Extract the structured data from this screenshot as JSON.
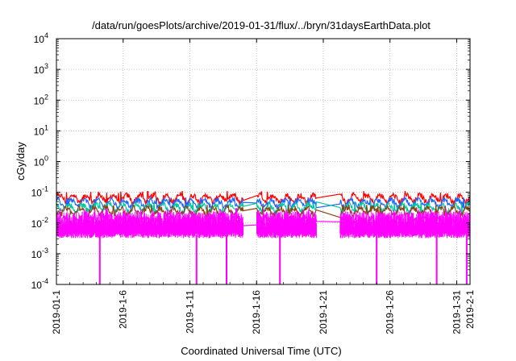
{
  "chart_data": {
    "type": "line",
    "title": "/data/run/goesPlots/archive/2019-01-31/flux/../bryn/31daysEarthData.plot",
    "xlabel": "Coordinated Universal Time (UTC)",
    "ylabel": "cGy/day",
    "y_scale": "log",
    "ylim": [
      0.0001,
      10000
    ],
    "y_ticks": [
      {
        "value": 0.0001,
        "base": "10",
        "exp": "-4"
      },
      {
        "value": 0.001,
        "base": "10",
        "exp": "-3"
      },
      {
        "value": 0.01,
        "base": "10",
        "exp": "-2"
      },
      {
        "value": 0.1,
        "base": "10",
        "exp": "-1"
      },
      {
        "value": 1,
        "base": "10",
        "exp": "0"
      },
      {
        "value": 10,
        "base": "10",
        "exp": "1"
      },
      {
        "value": 100,
        "base": "10",
        "exp": "2"
      },
      {
        "value": 1000,
        "base": "10",
        "exp": "3"
      },
      {
        "value": 10000,
        "base": "10",
        "exp": "4"
      }
    ],
    "xlim": [
      "2019-01-01",
      "2019-02-01"
    ],
    "x_ticks": [
      "2019-01-1",
      "2019-1-6",
      "2019-1-11",
      "2019-1-16",
      "2019-1-21",
      "2019-1-26",
      "2019-1-31",
      "2019-2-1"
    ],
    "x_tick_dates": [
      "2019-01-01",
      "2019-01-06",
      "2019-01-11",
      "2019-01-16",
      "2019-01-21",
      "2019-01-26",
      "2019-01-31",
      "2019-02-01"
    ],
    "grid": true,
    "data_gaps": [
      [
        "2019-01-15T00:00",
        "2019-01-16T00:00"
      ],
      [
        "2019-01-20T12:00",
        "2019-01-22T06:00"
      ]
    ],
    "series": [
      {
        "color": "#ff0000",
        "typical": 0.065,
        "peak": 0.11
      },
      {
        "color": "#1e64ff",
        "typical": 0.045,
        "peak": 0.07
      },
      {
        "color": "#00c8a0",
        "typical": 0.032,
        "peak": 0.05
      },
      {
        "color": "#8b4513",
        "typical": 0.025,
        "peak": 0.04
      },
      {
        "color": "#ff00ff",
        "typical": 0.012,
        "peak": 0.03,
        "floor": 0.004,
        "dropouts": [
          "2019-01-04T06:00",
          "2019-01-11T12:00",
          "2019-01-13T18:00",
          "2019-01-17T18:00",
          "2019-01-25T00:00",
          "2019-01-29T12:00",
          "2019-01-31T18:00"
        ]
      }
    ]
  }
}
